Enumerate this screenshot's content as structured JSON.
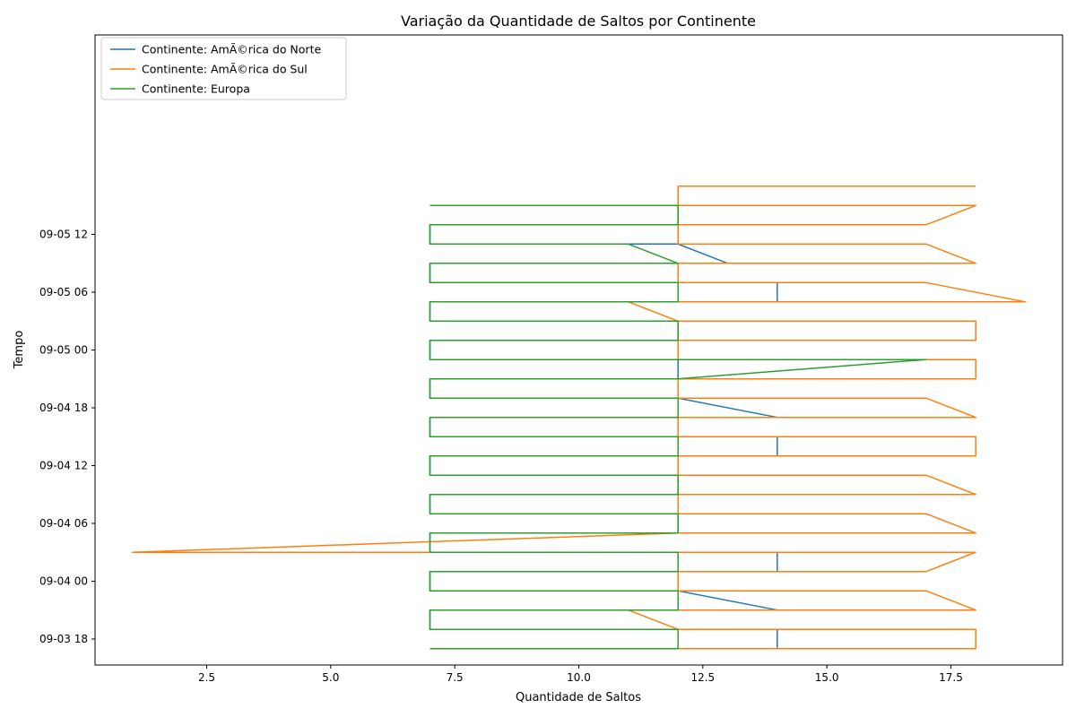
{
  "chart_data": {
    "type": "line",
    "title": "Variação da Quantidade de Saltos por Continente",
    "xlabel": "Quantidade de Saltos",
    "ylabel": "Tempo",
    "xlim": [
      0.25,
      19.75
    ],
    "ylim": [
      "2024-09-03T15:18",
      "2024-09-06T08:42"
    ],
    "x_ticks": [
      {
        "value": 2.5,
        "label": "2.5"
      },
      {
        "value": 5.0,
        "label": "5.0"
      },
      {
        "value": 7.5,
        "label": "7.5"
      },
      {
        "value": 10.0,
        "label": "10.0"
      },
      {
        "value": 12.5,
        "label": "12.5"
      },
      {
        "value": 15.0,
        "label": "15.0"
      },
      {
        "value": 17.5,
        "label": "17.5"
      }
    ],
    "y_ticks": [
      {
        "value": "2024-09-03T18:00",
        "label": "09-03 18"
      },
      {
        "value": "2024-09-04T00:00",
        "label": "09-04 00"
      },
      {
        "value": "2024-09-04T06:00",
        "label": "09-04 06"
      },
      {
        "value": "2024-09-04T12:00",
        "label": "09-04 12"
      },
      {
        "value": "2024-09-04T18:00",
        "label": "09-04 18"
      },
      {
        "value": "2024-09-05T00:00",
        "label": "09-05 00"
      },
      {
        "value": "2024-09-05T06:00",
        "label": "09-05 06"
      },
      {
        "value": "2024-09-05T12:00",
        "label": "09-05 12"
      }
    ],
    "grid": false,
    "legend_position": "top-left",
    "series": [
      {
        "name": "Continente: AmÃ©rica do Norte",
        "color": "#1f77b4",
        "points": [
          {
            "y": "2024-09-03T17:00",
            "x": [
              7,
              8,
              9,
              14
            ]
          },
          {
            "y": "2024-09-03T19:00",
            "x": [
              7,
              8,
              9.2,
              14
            ]
          },
          {
            "y": "2024-09-03T21:00",
            "x": [
              7,
              8,
              9,
              14
            ]
          },
          {
            "y": "2024-09-03T23:00",
            "x": [
              7,
              8,
              8.9,
              12
            ]
          },
          {
            "y": "2024-09-04T01:00",
            "x": [
              7,
              8,
              9,
              14
            ]
          },
          {
            "y": "2024-09-04T03:00",
            "x": [
              7,
              8,
              9,
              14
            ]
          },
          {
            "y": "2024-09-04T05:00",
            "x": [
              7,
              8,
              9.1,
              12
            ]
          },
          {
            "y": "2024-09-04T07:00",
            "x": [
              7,
              8,
              8.9,
              12
            ]
          },
          {
            "y": "2024-09-04T09:00",
            "x": [
              7,
              8,
              9,
              12
            ]
          },
          {
            "y": "2024-09-04T11:00",
            "x": [
              7,
              8,
              9,
              12
            ]
          },
          {
            "y": "2024-09-04T13:00",
            "x": [
              7,
              8,
              9.1,
              14
            ]
          },
          {
            "y": "2024-09-04T15:00",
            "x": [
              7,
              8,
              9.1,
              14
            ]
          },
          {
            "y": "2024-09-04T17:00",
            "x": [
              7,
              8,
              9,
              14
            ]
          },
          {
            "y": "2024-09-04T19:00",
            "x": [
              7,
              8,
              9,
              12
            ]
          },
          {
            "y": "2024-09-04T21:00",
            "x": [
              7,
              8,
              9,
              12
            ]
          },
          {
            "y": "2024-09-04T23:00",
            "x": [
              7,
              8,
              9,
              12
            ]
          },
          {
            "y": "2024-09-05T01:00",
            "x": [
              7,
              8,
              9,
              12
            ]
          },
          {
            "y": "2024-09-05T03:00",
            "x": [
              7,
              8,
              9,
              12
            ]
          },
          {
            "y": "2024-09-05T05:00",
            "x": [
              7,
              8,
              9,
              14
            ]
          },
          {
            "y": "2024-09-05T07:00",
            "x": [
              7,
              8,
              9,
              14
            ]
          },
          {
            "y": "2024-09-05T09:00",
            "x": [
              7,
              8,
              9,
              13
            ]
          },
          {
            "y": "2024-09-05T11:00",
            "x": [
              7,
              8,
              9,
              12
            ]
          },
          {
            "y": "2024-09-05T13:00",
            "x": [
              7,
              8,
              9,
              12
            ]
          },
          {
            "y": "2024-09-05T15:00",
            "x": [
              7,
              8,
              9,
              12
            ]
          }
        ]
      },
      {
        "name": "Continente: AmÃ©rica do Sul",
        "color": "#ff7f0e",
        "points": [
          {
            "y": "2024-09-03T17:00",
            "x": [
              12,
              16,
              17,
              18
            ]
          },
          {
            "y": "2024-09-03T19:00",
            "x": [
              12,
              16,
              17,
              18
            ]
          },
          {
            "y": "2024-09-03T21:00",
            "x": [
              11,
              16,
              17,
              18
            ]
          },
          {
            "y": "2024-09-03T23:00",
            "x": [
              12,
              16,
              17
            ]
          },
          {
            "y": "2024-09-04T01:00",
            "x": [
              12,
              16,
              17
            ]
          },
          {
            "y": "2024-09-04T03:00",
            "x": [
              1,
              7,
              16,
              17,
              18
            ]
          },
          {
            "y": "2024-09-04T05:00",
            "x": [
              12,
              16,
              17,
              18
            ]
          },
          {
            "y": "2024-09-04T07:00",
            "x": [
              12,
              16,
              17
            ]
          },
          {
            "y": "2024-09-04T09:00",
            "x": [
              12,
              16,
              17,
              18
            ]
          },
          {
            "y": "2024-09-04T11:00",
            "x": [
              12,
              16,
              17
            ]
          },
          {
            "y": "2024-09-04T13:00",
            "x": [
              12,
              16,
              17,
              18
            ]
          },
          {
            "y": "2024-09-04T15:00",
            "x": [
              12,
              16,
              17,
              18
            ]
          },
          {
            "y": "2024-09-04T17:00",
            "x": [
              12,
              16,
              17,
              18
            ]
          },
          {
            "y": "2024-09-04T19:00",
            "x": [
              12,
              16,
              17
            ]
          },
          {
            "y": "2024-09-04T21:00",
            "x": [
              12,
              16,
              17,
              18
            ]
          },
          {
            "y": "2024-09-04T23:00",
            "x": [
              12,
              16,
              17,
              18
            ]
          },
          {
            "y": "2024-09-05T01:00",
            "x": [
              12,
              16,
              17,
              18
            ]
          },
          {
            "y": "2024-09-05T03:00",
            "x": [
              12,
              16,
              17,
              18
            ]
          },
          {
            "y": "2024-09-05T05:00",
            "x": [
              11,
              16,
              17,
              19
            ]
          },
          {
            "y": "2024-09-05T07:00",
            "x": [
              12,
              16,
              17
            ]
          },
          {
            "y": "2024-09-05T09:00",
            "x": [
              12,
              16,
              17,
              18
            ]
          },
          {
            "y": "2024-09-05T11:00",
            "x": [
              12,
              16,
              17
            ]
          },
          {
            "y": "2024-09-05T13:00",
            "x": [
              12,
              16,
              17
            ]
          },
          {
            "y": "2024-09-05T15:00",
            "x": [
              12,
              16,
              17,
              18
            ]
          },
          {
            "y": "2024-09-05T17:00",
            "x": [
              12,
              16,
              17,
              18
            ]
          }
        ]
      },
      {
        "name": "Continente: Europa",
        "color": "#2ca02c",
        "points": [
          {
            "y": "2024-09-03T17:00",
            "x": [
              7,
              8,
              11,
              12
            ]
          },
          {
            "y": "2024-09-03T19:00",
            "x": [
              7,
              8,
              11,
              12
            ]
          },
          {
            "y": "2024-09-03T21:00",
            "x": [
              7,
              8,
              11,
              12
            ]
          },
          {
            "y": "2024-09-03T23:00",
            "x": [
              7,
              8,
              11,
              12
            ]
          },
          {
            "y": "2024-09-04T01:00",
            "x": [
              7,
              8,
              11,
              12
            ]
          },
          {
            "y": "2024-09-04T03:00",
            "x": [
              7,
              8,
              11,
              12
            ]
          },
          {
            "y": "2024-09-04T05:00",
            "x": [
              7,
              8,
              11,
              12
            ]
          },
          {
            "y": "2024-09-04T07:00",
            "x": [
              7,
              8,
              12
            ]
          },
          {
            "y": "2024-09-04T09:00",
            "x": [
              7,
              8,
              12
            ]
          },
          {
            "y": "2024-09-04T11:00",
            "x": [
              7,
              8,
              11,
              12
            ]
          },
          {
            "y": "2024-09-04T13:00",
            "x": [
              7,
              8,
              11,
              12
            ]
          },
          {
            "y": "2024-09-04T15:00",
            "x": [
              7,
              8,
              11,
              12
            ]
          },
          {
            "y": "2024-09-04T17:00",
            "x": [
              7,
              8,
              12
            ]
          },
          {
            "y": "2024-09-04T19:00",
            "x": [
              7,
              8,
              12
            ]
          },
          {
            "y": "2024-09-04T21:00",
            "x": [
              7,
              8,
              12
            ]
          },
          {
            "y": "2024-09-04T23:00",
            "x": [
              7,
              8,
              12,
              16,
              17
            ]
          },
          {
            "y": "2024-09-05T01:00",
            "x": [
              7,
              8,
              12
            ]
          },
          {
            "y": "2024-09-05T03:00",
            "x": [
              7,
              8,
              11,
              12
            ]
          },
          {
            "y": "2024-09-05T05:00",
            "x": [
              7,
              8,
              12
            ]
          },
          {
            "y": "2024-09-05T07:00",
            "x": [
              7,
              8,
              12
            ]
          },
          {
            "y": "2024-09-05T09:00",
            "x": [
              7,
              8,
              11,
              12
            ]
          },
          {
            "y": "2024-09-05T11:00",
            "x": [
              7,
              8,
              11
            ]
          },
          {
            "y": "2024-09-05T13:00",
            "x": [
              7,
              8,
              11,
              12
            ]
          },
          {
            "y": "2024-09-05T15:00",
            "x": [
              7,
              8,
              12
            ]
          }
        ]
      }
    ]
  }
}
